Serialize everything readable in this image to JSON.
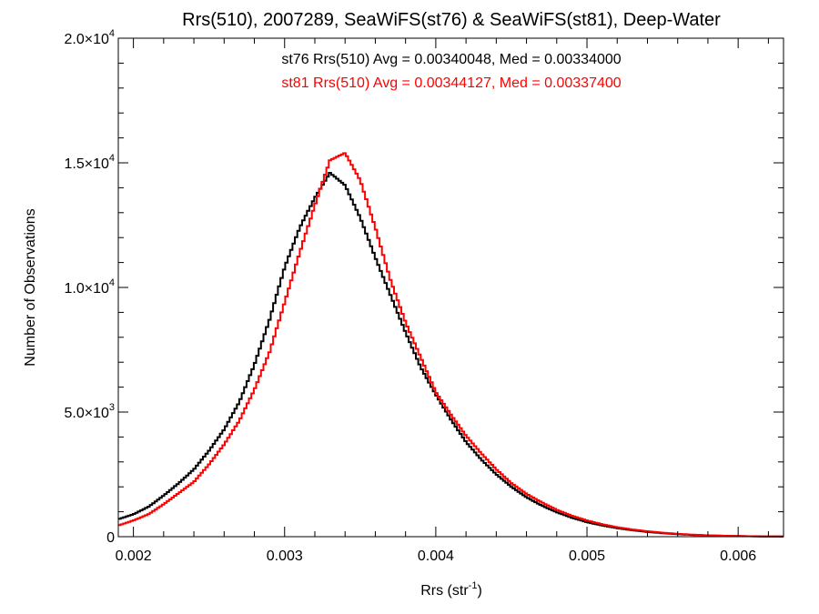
{
  "chart_data": {
    "type": "line",
    "title": "Rrs(510), 2007289, SeaWiFS(st76) & SeaWiFS(st81), Deep-Water",
    "xlabel": "Rrs (str",
    "xlabel_sup": "-1",
    "xlabel_close": ")",
    "ylabel": "Number of Observations",
    "xlim": [
      0.0019,
      0.0063
    ],
    "ylim": [
      0,
      20000
    ],
    "x_ticks": [
      {
        "value": 0.002,
        "label": "0.002"
      },
      {
        "value": 0.003,
        "label": "0.003"
      },
      {
        "value": 0.004,
        "label": "0.004"
      },
      {
        "value": 0.005,
        "label": "0.005"
      },
      {
        "value": 0.006,
        "label": "0.006"
      }
    ],
    "y_ticks": [
      {
        "value": 0,
        "label": "0",
        "exp": ""
      },
      {
        "value": 5000,
        "label": "5.0×10",
        "exp": "3"
      },
      {
        "value": 10000,
        "label": "1.0×10",
        "exp": "4"
      },
      {
        "value": 15000,
        "label": "1.5×10",
        "exp": "4"
      },
      {
        "value": 20000,
        "label": "2.0×10",
        "exp": "4"
      }
    ],
    "stats": {
      "st76": "st76 Rrs(510) Avg = 0.00340048, Med = 0.00334000",
      "st81": "st81 Rrs(510) Avg = 0.00344127, Med = 0.00337400"
    },
    "grid": false,
    "series": [
      {
        "color": "#000000",
        "x": [
          0.0019,
          0.002,
          0.0021,
          0.0022,
          0.0023,
          0.0024,
          0.0025,
          0.0026,
          0.0027,
          0.0028,
          0.0029,
          0.003,
          0.0031,
          0.0032,
          0.0033,
          0.0034,
          0.0035,
          0.0036,
          0.0037,
          0.0038,
          0.0039,
          0.004,
          0.0041,
          0.0042,
          0.0043,
          0.0044,
          0.0045,
          0.0046,
          0.0047,
          0.0048,
          0.0049,
          0.005,
          0.0051,
          0.0052,
          0.0053,
          0.0054,
          0.0055,
          0.0056,
          0.0057,
          0.0058,
          0.0059,
          0.006,
          0.0061,
          0.0062,
          0.0063
        ],
        "values": [
          700,
          900,
          1200,
          1650,
          2150,
          2700,
          3450,
          4300,
          5400,
          6900,
          8700,
          10800,
          12400,
          13600,
          14600,
          14100,
          12800,
          11200,
          9700,
          8200,
          6800,
          5700,
          4700,
          3800,
          3100,
          2500,
          2000,
          1580,
          1250,
          980,
          760,
          580,
          450,
          340,
          260,
          190,
          140,
          100,
          70,
          50,
          35,
          25,
          15,
          10,
          5
        ]
      },
      {
        "color": "#ff0000",
        "x": [
          0.0019,
          0.002,
          0.0021,
          0.0022,
          0.0023,
          0.0024,
          0.0025,
          0.0026,
          0.0027,
          0.0028,
          0.0029,
          0.003,
          0.0031,
          0.0032,
          0.0033,
          0.0034,
          0.0035,
          0.0036,
          0.0037,
          0.0038,
          0.0039,
          0.004,
          0.0041,
          0.0042,
          0.0043,
          0.0044,
          0.0045,
          0.0046,
          0.0047,
          0.0048,
          0.0049,
          0.005,
          0.0051,
          0.0052,
          0.0053,
          0.0054,
          0.0055,
          0.0056,
          0.0057,
          0.0058,
          0.0059,
          0.006,
          0.0061,
          0.0062,
          0.0063
        ],
        "values": [
          450,
          650,
          900,
          1300,
          1750,
          2200,
          2900,
          3700,
          4650,
          5900,
          7400,
          9400,
          11400,
          13300,
          15100,
          15400,
          14300,
          12400,
          10300,
          8600,
          7200,
          5800,
          4900,
          4050,
          3350,
          2700,
          2150,
          1720,
          1380,
          1080,
          840,
          650,
          500,
          380,
          290,
          215,
          160,
          115,
          80,
          55,
          38,
          26,
          17,
          11,
          6
        ]
      }
    ]
  }
}
